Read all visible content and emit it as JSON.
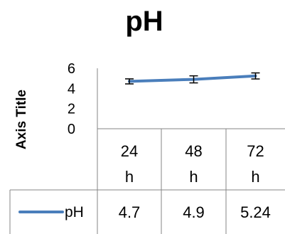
{
  "chart_data": {
    "type": "line",
    "title": "pH",
    "ylabel": "Axis Title",
    "xlabel": "",
    "categories": [
      "24\nh",
      "48\nh",
      "72\nh"
    ],
    "series": [
      {
        "name": "pH",
        "values": [
          4.7,
          4.9,
          5.24
        ],
        "error": [
          0.25,
          0.35,
          0.3
        ],
        "color": "#4a7ebb"
      }
    ],
    "ylim": [
      0,
      6
    ],
    "yticks": [
      "0",
      "2",
      "4",
      "6"
    ],
    "grid": false,
    "legend": "data-table",
    "data_table": true,
    "data_table_values": [
      "4.7",
      "4.9",
      "5.24"
    ]
  }
}
